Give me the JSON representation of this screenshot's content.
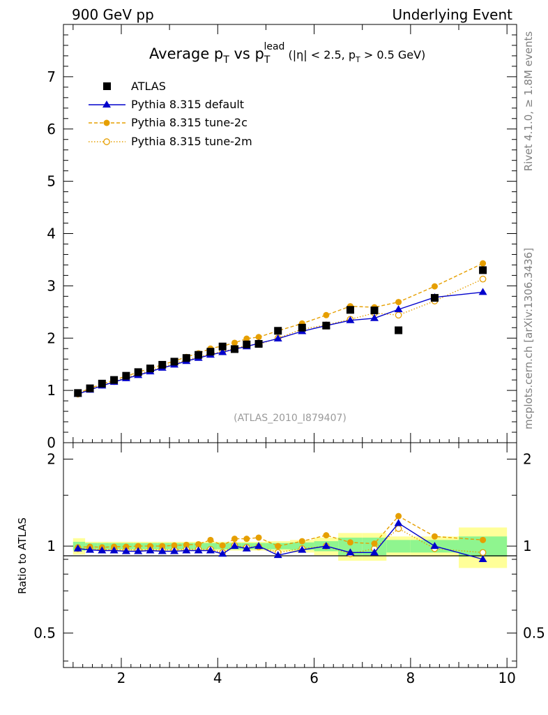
{
  "header": {
    "left": "900 GeV pp",
    "right": "Underlying Event"
  },
  "side_labels": {
    "rivet": "Rivet 4.1.0, ≥ 1.8M events",
    "mcplots": "mcplots.cern.ch [arXiv:1306.3436]"
  },
  "analysis_tag": "(ATLAS_2010_I879407)",
  "title": {
    "main": "Average p",
    "sub1": "T",
    "vs": " vs p",
    "sub2": "T",
    "sup2": "lead",
    "cuts": " (|η| < 2.5, p",
    "cuts_sub": "T",
    "cuts_tail": " > 0.5 GeV)"
  },
  "legend": [
    {
      "label": "ATLAS"
    },
    {
      "label": "Pythia 8.315 default"
    },
    {
      "label": "Pythia 8.315 tune-2c"
    },
    {
      "label": "Pythia 8.315 tune-2m"
    }
  ],
  "ratio_ylabel": "Ratio to ATLAS",
  "colors": {
    "data": "#000000",
    "default": "#0000cc",
    "tune2c": "#e69f00",
    "tune2m": "#e69f00",
    "band_inner": "#8ff58f",
    "band_outer": "#ffff99"
  },
  "chart_data": [
    {
      "type": "line",
      "panel": "main",
      "xlim": [
        0.8,
        10.2
      ],
      "ylim": [
        0,
        8
      ],
      "yticks": [
        0,
        1,
        2,
        3,
        4,
        5,
        6,
        7
      ],
      "ytick_labels": [
        "0",
        "1",
        "2",
        "3",
        "4",
        "5",
        "6",
        "7"
      ],
      "x": [
        1.1,
        1.35,
        1.6,
        1.85,
        2.1,
        2.35,
        2.6,
        2.85,
        3.1,
        3.35,
        3.6,
        3.85,
        4.1,
        4.35,
        4.6,
        4.85,
        5.25,
        5.75,
        6.25,
        6.75,
        7.25,
        7.75,
        8.5,
        9.5
      ],
      "series": [
        {
          "name": "ATLAS",
          "style": "squares",
          "values": [
            0.95,
            1.04,
            1.13,
            1.2,
            1.28,
            1.35,
            1.42,
            1.49,
            1.55,
            1.62,
            1.68,
            1.74,
            1.84,
            1.79,
            1.88,
            1.89,
            2.14,
            2.2,
            2.24,
            2.54,
            2.53,
            2.15,
            2.77,
            3.3
          ]
        },
        {
          "name": "Pythia 8.315 default",
          "style": "triangles",
          "values": [
            0.93,
            1.01,
            1.09,
            1.16,
            1.23,
            1.29,
            1.36,
            1.43,
            1.49,
            1.56,
            1.62,
            1.68,
            1.73,
            1.79,
            1.84,
            1.9,
            1.99,
            2.13,
            2.24,
            2.34,
            2.38,
            2.55,
            2.78,
            2.88
          ]
        },
        {
          "name": "Pythia 8.315 tune-2c",
          "style": "filled-circles-dashed",
          "values": [
            0.94,
            1.04,
            1.12,
            1.2,
            1.27,
            1.35,
            1.42,
            1.49,
            1.56,
            1.64,
            1.71,
            1.8,
            1.85,
            1.91,
            1.99,
            2.02,
            2.14,
            2.28,
            2.44,
            2.61,
            2.59,
            2.69,
            2.99,
            3.43
          ]
        },
        {
          "name": "Pythia 8.315 tune-2m",
          "style": "open-circles-dotted",
          "values": [
            0.93,
            1.02,
            1.1,
            1.17,
            1.24,
            1.31,
            1.38,
            1.45,
            1.51,
            1.58,
            1.64,
            1.7,
            1.74,
            1.8,
            1.86,
            1.88,
            2.0,
            2.17,
            2.25,
            2.36,
            2.48,
            2.44,
            2.71,
            3.13
          ]
        }
      ]
    },
    {
      "type": "line",
      "panel": "ratio",
      "xlim": [
        0.8,
        10.2
      ],
      "ylim": [
        0.38,
        2.28
      ],
      "yscale": "log",
      "xticks": [
        2,
        4,
        6,
        8,
        10
      ],
      "xtick_labels": [
        "2",
        "4",
        "6",
        "8",
        "10"
      ],
      "yticks": [
        0.5,
        1,
        2
      ],
      "ytick_labels": [
        "0.5",
        "1",
        "2"
      ],
      "x": [
        1.1,
        1.35,
        1.6,
        1.85,
        2.1,
        2.35,
        2.6,
        2.85,
        3.1,
        3.35,
        3.6,
        3.85,
        4.1,
        4.35,
        4.6,
        4.85,
        5.25,
        5.75,
        6.25,
        6.75,
        7.25,
        7.75,
        8.5,
        9.5
      ],
      "bins": [
        [
          1.0,
          1.25
        ],
        [
          1.25,
          1.5
        ],
        [
          1.5,
          1.75
        ],
        [
          1.75,
          2.0
        ],
        [
          2.0,
          2.25
        ],
        [
          2.25,
          2.5
        ],
        [
          2.5,
          2.75
        ],
        [
          2.75,
          3.0
        ],
        [
          3.0,
          3.25
        ],
        [
          3.25,
          3.5
        ],
        [
          3.5,
          3.75
        ],
        [
          3.75,
          4.0
        ],
        [
          4.0,
          4.25
        ],
        [
          4.25,
          4.5
        ],
        [
          4.5,
          4.75
        ],
        [
          4.75,
          5.0
        ],
        [
          5.0,
          5.5
        ],
        [
          5.5,
          6.0
        ],
        [
          6.0,
          6.5
        ],
        [
          6.5,
          7.0
        ],
        [
          7.0,
          7.5
        ],
        [
          7.5,
          8.0
        ],
        [
          8.0,
          9.0
        ],
        [
          9.0,
          10.0
        ]
      ],
      "band_inner_halfwidth": [
        0.035,
        0.025,
        0.025,
        0.025,
        0.025,
        0.025,
        0.025,
        0.025,
        0.025,
        0.025,
        0.025,
        0.025,
        0.025,
        0.025,
        0.025,
        0.025,
        0.025,
        0.03,
        0.04,
        0.07,
        0.07,
        0.05,
        0.05,
        0.08
      ],
      "band_outer_halfwidth": [
        0.065,
        0.035,
        0.035,
        0.035,
        0.035,
        0.035,
        0.035,
        0.035,
        0.035,
        0.035,
        0.035,
        0.035,
        0.035,
        0.035,
        0.035,
        0.035,
        0.04,
        0.05,
        0.07,
        0.11,
        0.11,
        0.08,
        0.08,
        0.16
      ],
      "series": [
        {
          "name": "Pythia 8.315 default",
          "style": "triangles",
          "values": [
            0.98,
            0.97,
            0.965,
            0.965,
            0.96,
            0.96,
            0.965,
            0.96,
            0.96,
            0.965,
            0.965,
            0.965,
            0.94,
            1.0,
            0.98,
            1.0,
            0.93,
            0.97,
            1.0,
            0.95,
            0.95,
            1.2,
            1.0,
            0.9
          ]
        },
        {
          "name": "Pythia 8.315 tune-2c",
          "style": "filled-circles-dashed",
          "values": [
            0.99,
            0.995,
            0.99,
            0.995,
            0.995,
            1.0,
            1.0,
            1.0,
            1.005,
            1.01,
            1.015,
            1.05,
            1.005,
            1.06,
            1.06,
            1.07,
            1.0,
            1.04,
            1.09,
            1.03,
            1.02,
            1.27,
            1.08,
            1.05
          ]
        },
        {
          "name": "Pythia 8.315 tune-2m",
          "style": "open-circles-dotted",
          "values": [
            0.98,
            0.98,
            0.97,
            0.975,
            0.97,
            0.97,
            0.97,
            0.97,
            0.97,
            0.975,
            0.975,
            0.975,
            0.95,
            1.005,
            0.99,
            0.995,
            0.95,
            0.98,
            1.0,
            0.94,
            0.98,
            1.15,
            0.98,
            0.95
          ]
        }
      ]
    }
  ]
}
